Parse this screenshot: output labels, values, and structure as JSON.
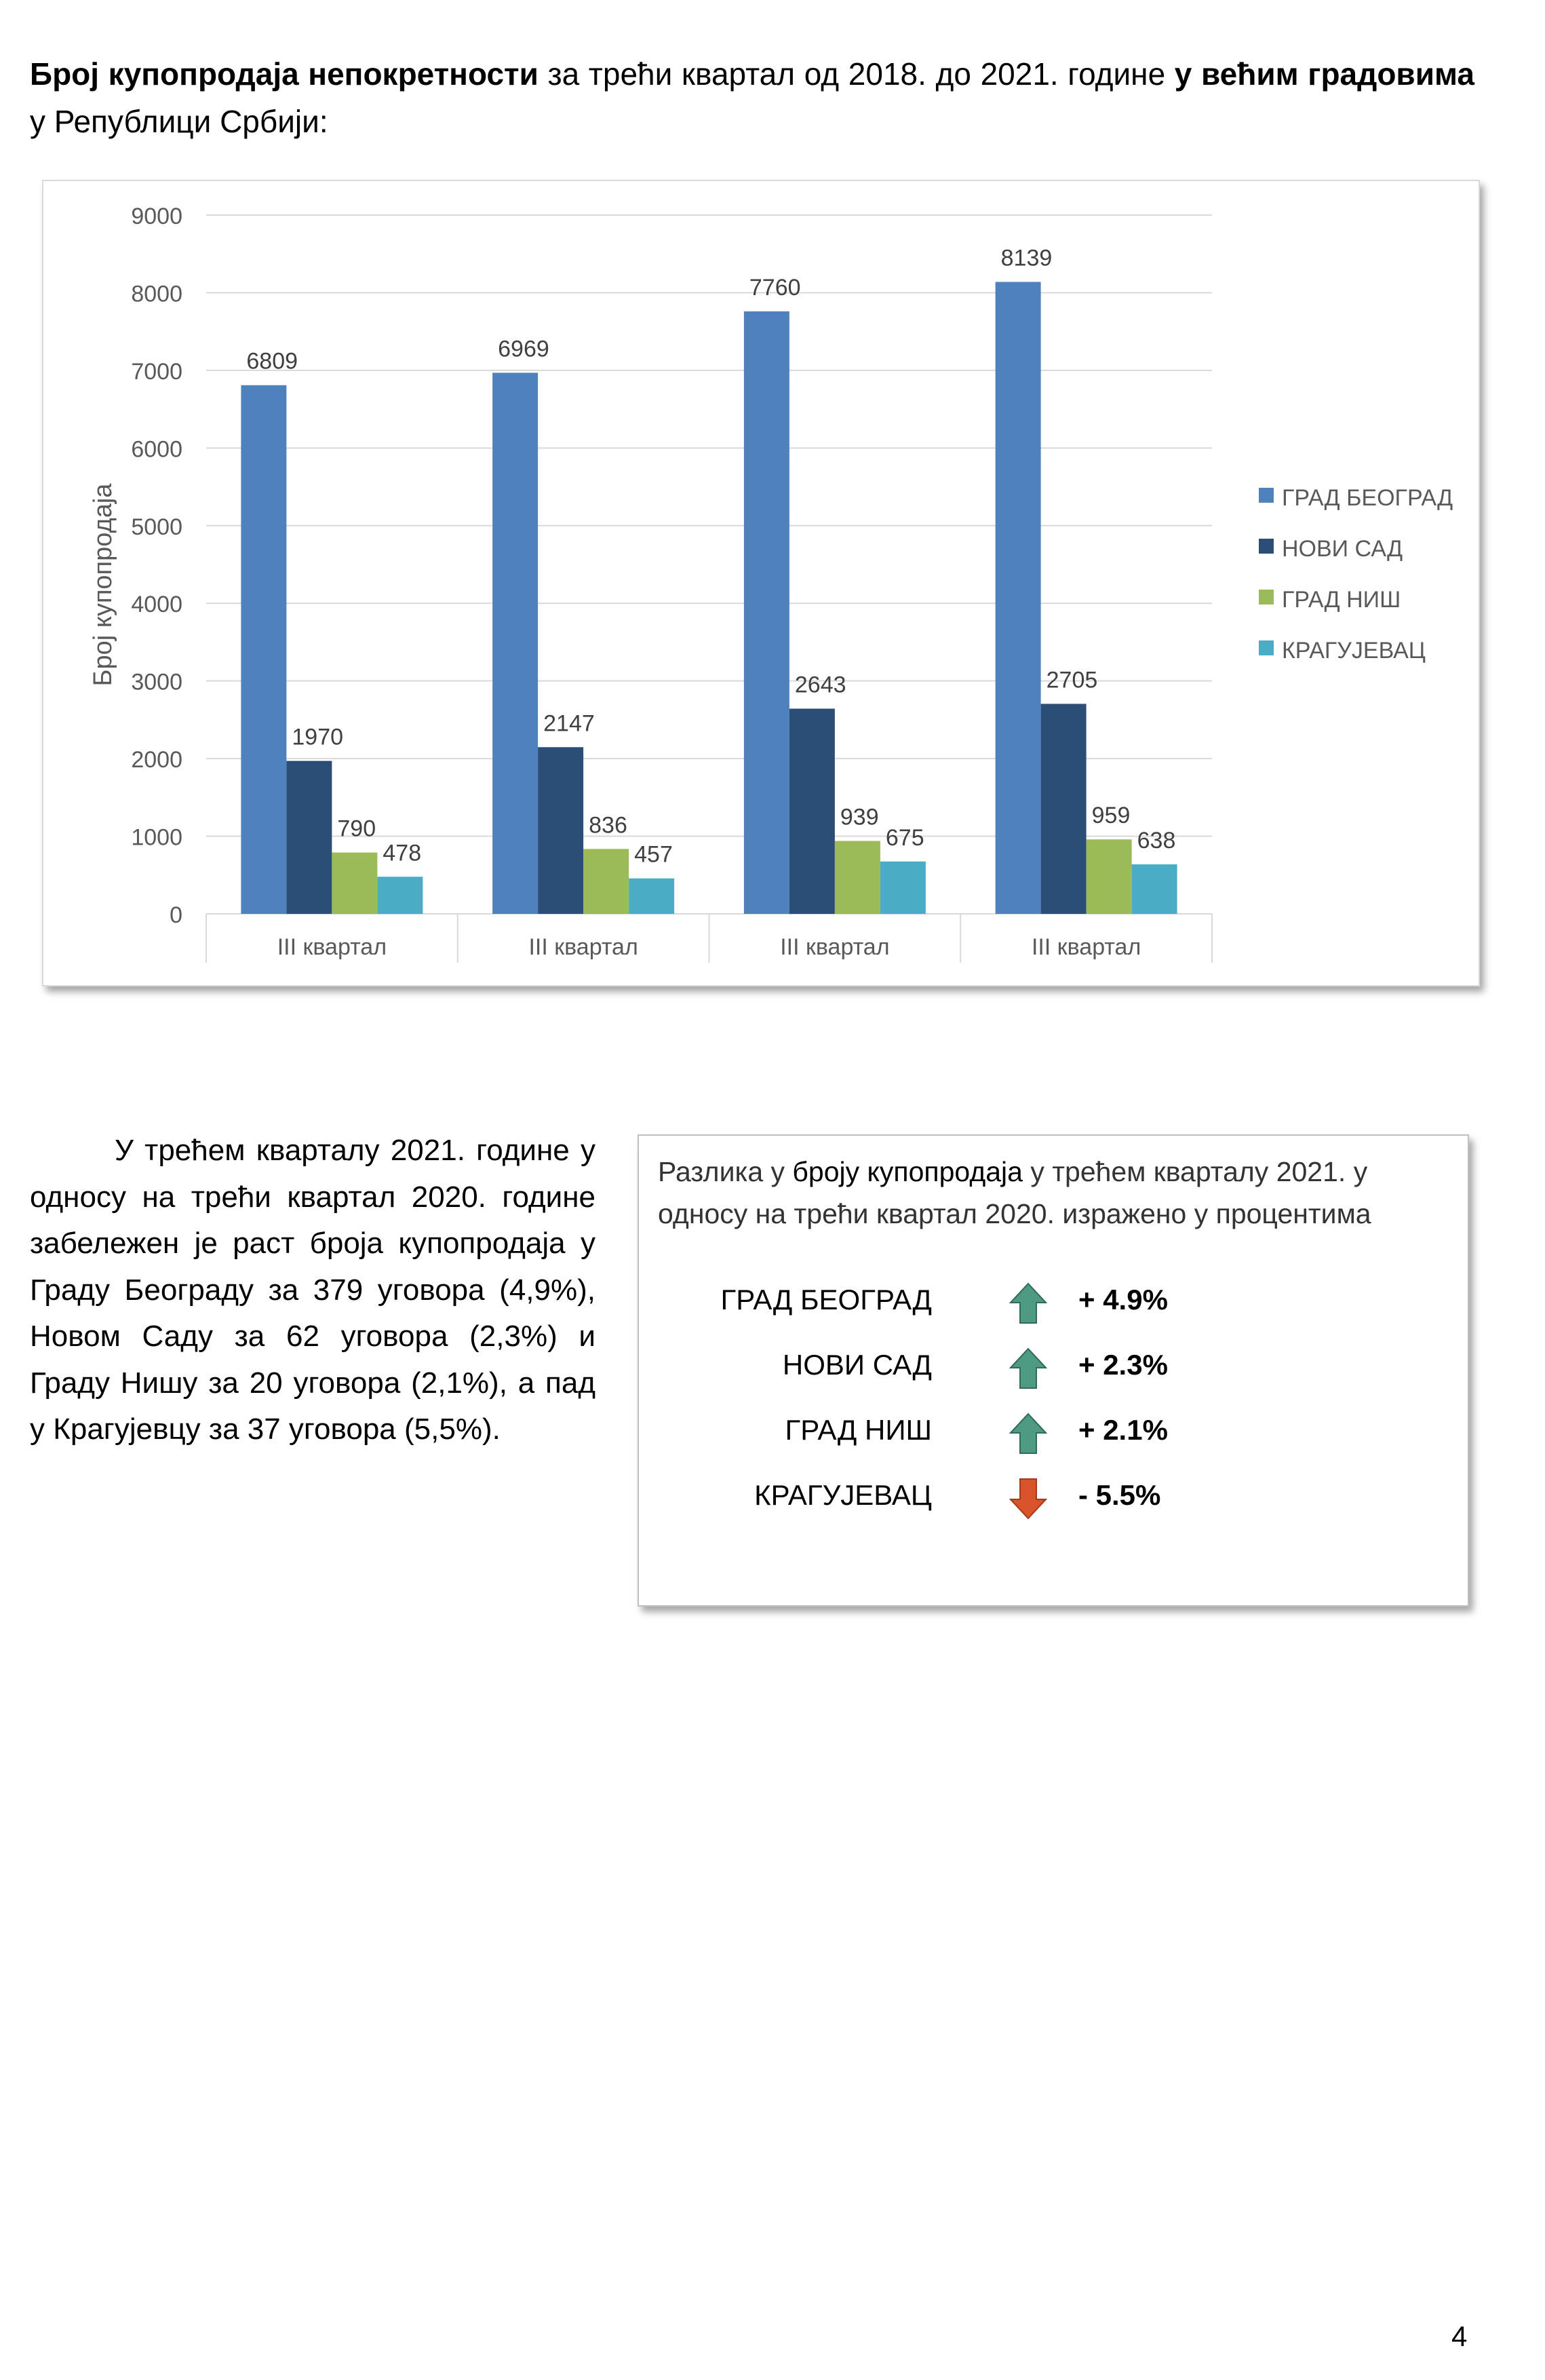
{
  "heading": {
    "part1_bold": "Број купопродаја непокретности",
    "part2": " за трећи квартал од 2018. до 2021. године ",
    "part3_bold": "у већим градовима",
    "part4": " у Републици Србији:"
  },
  "chart_data": {
    "type": "bar",
    "categories": [
      "III квартал",
      "III квартал",
      "III квартал",
      "III квартал"
    ],
    "series": [
      {
        "name": "ГРАД БЕОГРАД",
        "color": "#4f81bd",
        "values": [
          6809,
          6969,
          7760,
          8139
        ]
      },
      {
        "name": "НОВИ САД",
        "color": "#2c4d75",
        "values": [
          1970,
          2147,
          2643,
          2705
        ]
      },
      {
        "name": "ГРАД НИШ",
        "color": "#9bbb59",
        "values": [
          790,
          836,
          939,
          959
        ]
      },
      {
        "name": "КРАГУЈЕВАЦ",
        "color": "#4bacc6",
        "values": [
          478,
          457,
          675,
          638
        ]
      }
    ],
    "ylabel": "Број купопродаја",
    "ylim": [
      0,
      9000
    ],
    "yticks": [
      0,
      1000,
      2000,
      3000,
      4000,
      5000,
      6000,
      7000,
      8000,
      9000
    ],
    "grid": true,
    "legend_position": "right"
  },
  "paragraph": "У трећем кварталу 2021. године у односу на трећи квартал 2020. године забележен је раст броја купопродаја у Граду Београду за 379 уговора (4,9%), Новом Саду за 62 уговора (2,3%) и Граду Нишу за 20 уговора (2,1%), а пад у Крагујевцу за 37 уговора (5,5%).",
  "diff_box": {
    "title_part1": "Разлика у ",
    "title_highlight": "броју купопродаја",
    "title_part2": " у трећем кварталу 2021. у односу на трећи квартал 2020. изражено у процентима",
    "rows": [
      {
        "city": "ГРАД БЕОГРАД",
        "direction": "up",
        "icon": "up-arrow-icon",
        "value": "+ 4.9%"
      },
      {
        "city": "НОВИ САД",
        "direction": "up",
        "icon": "up-arrow-icon",
        "value": "+ 2.3%"
      },
      {
        "city": "ГРАД НИШ",
        "direction": "up",
        "icon": "up-arrow-icon",
        "value": "+ 2.1%"
      },
      {
        "city": "КРАГУЈЕВАЦ",
        "direction": "down",
        "icon": "down-arrow-icon",
        "value": "- 5.5%"
      }
    ],
    "up_color": "#4e9a84",
    "down_color": "#d9542b"
  },
  "page_number": "4"
}
